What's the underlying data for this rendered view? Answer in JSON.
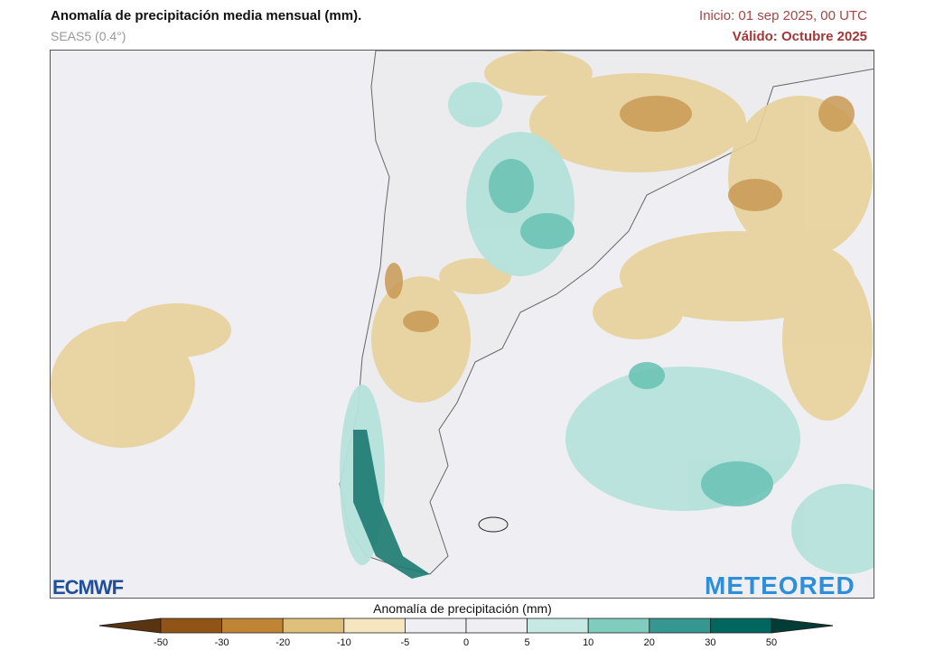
{
  "header": {
    "title": "Anomalía de precipitación media mensual (mm).",
    "model": "SEAS5 (0.4°)",
    "init": "Inicio: 01 sep 2025, 00 UTC",
    "valid": "Válido: Octubre 2025"
  },
  "logos": {
    "left": "ECMWF",
    "right": "METEORED"
  },
  "colorbar": {
    "label": "Anomalía de precipitación (mm)",
    "ticks": [
      "-50",
      "-30",
      "-20",
      "-10",
      "-5",
      "0",
      "5",
      "10",
      "20",
      "30",
      "50"
    ],
    "colors": [
      "#5a3410",
      "#8f5416",
      "#bf8535",
      "#dfc07a",
      "#f5e6c0",
      "#eeeef3",
      "#eeeef3",
      "#c6e9e3",
      "#80cdc0",
      "#35978f",
      "#01665e",
      "#013c36"
    ],
    "extend": "both"
  },
  "map": {
    "region": "South America (southern cone) and adjacent oceans",
    "background_color": "#eeeef3"
  }
}
